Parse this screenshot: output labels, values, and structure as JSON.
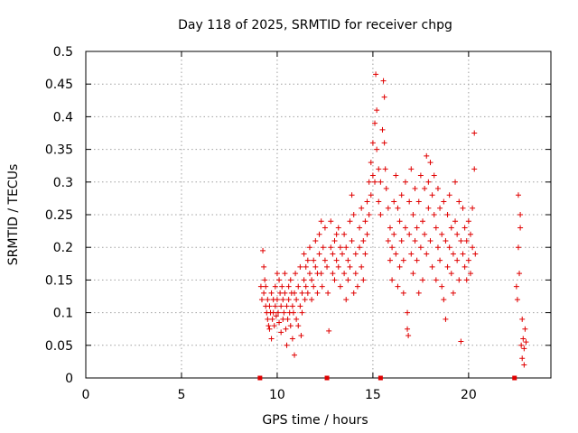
{
  "chart_data": {
    "type": "scatter",
    "title": "Day 118 of 2025, SRMTID for receiver chpg",
    "xlabel": "GPS time / hours",
    "ylabel": "SRMTID / TECUs",
    "xlim": [
      0,
      24.3
    ],
    "ylim": [
      0,
      0.5
    ],
    "x_ticks": [
      0,
      5,
      10,
      15,
      20
    ],
    "x_tick_labels": [
      "0",
      "5",
      "10",
      "15",
      "20"
    ],
    "y_ticks": [
      0,
      0.05,
      0.1,
      0.15,
      0.2,
      0.25,
      0.3,
      0.35,
      0.4,
      0.45,
      0.5
    ],
    "y_tick_labels": [
      "0",
      "0.05",
      "0.1",
      "0.15",
      "0.2",
      "0.25",
      "0.3",
      "0.35",
      "0.4",
      "0.45",
      "0.5"
    ],
    "grid": true,
    "marker": "+",
    "color": "#e00000",
    "series": [
      {
        "name": "SRMTID",
        "points": [
          [
            9.15,
            0.14
          ],
          [
            9.2,
            0.12
          ],
          [
            9.25,
            0.195
          ],
          [
            9.3,
            0.17
          ],
          [
            9.3,
            0.13
          ],
          [
            9.35,
            0.15
          ],
          [
            9.4,
            0.14
          ],
          [
            9.4,
            0.11
          ],
          [
            9.45,
            0.1
          ],
          [
            9.5,
            0.09
          ],
          [
            9.5,
            0.12
          ],
          [
            9.55,
            0.08
          ],
          [
            9.6,
            0.11
          ],
          [
            9.6,
            0.075
          ],
          [
            9.65,
            0.1
          ],
          [
            9.7,
            0.06
          ],
          [
            9.7,
            0.13
          ],
          [
            9.75,
            0.09
          ],
          [
            9.8,
            0.12
          ],
          [
            9.8,
            0.1
          ],
          [
            9.85,
            0.08
          ],
          [
            9.9,
            0.11
          ],
          [
            9.9,
            0.14
          ],
          [
            9.95,
            0.095
          ],
          [
            10.0,
            0.16
          ],
          [
            10.0,
            0.12
          ],
          [
            10.05,
            0.1
          ],
          [
            10.1,
            0.15
          ],
          [
            10.1,
            0.085
          ],
          [
            10.15,
            0.13
          ],
          [
            10.2,
            0.11
          ],
          [
            10.2,
            0.07
          ],
          [
            10.25,
            0.14
          ],
          [
            10.3,
            0.12
          ],
          [
            10.3,
            0.09
          ],
          [
            10.35,
            0.1
          ],
          [
            10.4,
            0.16
          ],
          [
            10.4,
            0.13
          ],
          [
            10.45,
            0.075
          ],
          [
            10.5,
            0.11
          ],
          [
            10.5,
            0.05
          ],
          [
            10.55,
            0.09
          ],
          [
            10.6,
            0.14
          ],
          [
            10.6,
            0.12
          ],
          [
            10.65,
            0.1
          ],
          [
            10.7,
            0.08
          ],
          [
            10.7,
            0.15
          ],
          [
            10.75,
            0.13
          ],
          [
            10.8,
            0.06
          ],
          [
            10.8,
            0.11
          ],
          [
            10.85,
            0.1
          ],
          [
            10.9,
            0.035
          ],
          [
            10.9,
            0.13
          ],
          [
            10.95,
            0.16
          ],
          [
            11.0,
            0.12
          ],
          [
            11.0,
            0.09
          ],
          [
            11.1,
            0.14
          ],
          [
            11.1,
            0.08
          ],
          [
            11.2,
            0.11
          ],
          [
            11.2,
            0.17
          ],
          [
            11.25,
            0.065
          ],
          [
            11.3,
            0.13
          ],
          [
            11.3,
            0.1
          ],
          [
            11.4,
            0.15
          ],
          [
            11.4,
            0.19
          ],
          [
            11.45,
            0.12
          ],
          [
            11.5,
            0.14
          ],
          [
            11.5,
            0.17
          ],
          [
            11.6,
            0.18
          ],
          [
            11.6,
            0.13
          ],
          [
            11.7,
            0.16
          ],
          [
            11.7,
            0.2
          ],
          [
            11.8,
            0.15
          ],
          [
            11.8,
            0.12
          ],
          [
            11.9,
            0.14
          ],
          [
            11.9,
            0.18
          ],
          [
            12.0,
            0.21
          ],
          [
            12.0,
            0.17
          ],
          [
            12.1,
            0.16
          ],
          [
            12.1,
            0.13
          ],
          [
            12.2,
            0.22
          ],
          [
            12.2,
            0.19
          ],
          [
            12.3,
            0.24
          ],
          [
            12.3,
            0.16
          ],
          [
            12.35,
            0.14
          ],
          [
            12.4,
            0.2
          ],
          [
            12.5,
            0.23
          ],
          [
            12.5,
            0.18
          ],
          [
            12.6,
            0.17
          ],
          [
            12.65,
            0.13
          ],
          [
            12.7,
            0.072
          ],
          [
            12.8,
            0.24
          ],
          [
            12.8,
            0.2
          ],
          [
            12.9,
            0.19
          ],
          [
            12.9,
            0.16
          ],
          [
            13.0,
            0.21
          ],
          [
            13.0,
            0.15
          ],
          [
            13.1,
            0.22
          ],
          [
            13.1,
            0.18
          ],
          [
            13.2,
            0.17
          ],
          [
            13.2,
            0.23
          ],
          [
            13.3,
            0.2
          ],
          [
            13.3,
            0.14
          ],
          [
            13.4,
            0.19
          ],
          [
            13.5,
            0.22
          ],
          [
            13.5,
            0.16
          ],
          [
            13.6,
            0.12
          ],
          [
            13.6,
            0.2
          ],
          [
            13.7,
            0.18
          ],
          [
            13.7,
            0.15
          ],
          [
            13.8,
            0.24
          ],
          [
            13.8,
            0.17
          ],
          [
            13.9,
            0.28
          ],
          [
            13.9,
            0.21
          ],
          [
            14.0,
            0.25
          ],
          [
            14.0,
            0.13
          ],
          [
            14.1,
            0.19
          ],
          [
            14.1,
            0.16
          ],
          [
            14.2,
            0.14
          ],
          [
            14.3,
            0.2
          ],
          [
            14.3,
            0.23
          ],
          [
            14.4,
            0.26
          ],
          [
            14.4,
            0.17
          ],
          [
            14.5,
            0.21
          ],
          [
            14.5,
            0.15
          ],
          [
            14.6,
            0.24
          ],
          [
            14.6,
            0.19
          ],
          [
            14.7,
            0.27
          ],
          [
            14.7,
            0.22
          ],
          [
            14.8,
            0.3
          ],
          [
            14.8,
            0.25
          ],
          [
            14.9,
            0.33
          ],
          [
            14.9,
            0.28
          ],
          [
            15.0,
            0.36
          ],
          [
            15.0,
            0.31
          ],
          [
            15.1,
            0.39
          ],
          [
            15.1,
            0.3
          ],
          [
            15.15,
            0.465
          ],
          [
            15.2,
            0.41
          ],
          [
            15.2,
            0.35
          ],
          [
            15.3,
            0.32
          ],
          [
            15.3,
            0.27
          ],
          [
            15.4,
            0.25
          ],
          [
            15.4,
            0.3
          ],
          [
            15.5,
            0.38
          ],
          [
            15.55,
            0.455
          ],
          [
            15.6,
            0.43
          ],
          [
            15.6,
            0.36
          ],
          [
            15.65,
            0.32
          ],
          [
            15.7,
            0.29
          ],
          [
            15.8,
            0.26
          ],
          [
            15.8,
            0.21
          ],
          [
            15.9,
            0.18
          ],
          [
            15.9,
            0.23
          ],
          [
            16.0,
            0.2
          ],
          [
            16.0,
            0.15
          ],
          [
            16.1,
            0.27
          ],
          [
            16.1,
            0.22
          ],
          [
            16.2,
            0.31
          ],
          [
            16.2,
            0.19
          ],
          [
            16.3,
            0.26
          ],
          [
            16.3,
            0.14
          ],
          [
            16.4,
            0.24
          ],
          [
            16.4,
            0.17
          ],
          [
            16.5,
            0.21
          ],
          [
            16.5,
            0.28
          ],
          [
            16.6,
            0.18
          ],
          [
            16.6,
            0.13
          ],
          [
            16.7,
            0.23
          ],
          [
            16.7,
            0.3
          ],
          [
            16.8,
            0.1
          ],
          [
            16.8,
            0.075
          ],
          [
            16.85,
            0.065
          ],
          [
            16.9,
            0.22
          ],
          [
            16.9,
            0.27
          ],
          [
            17.0,
            0.19
          ],
          [
            17.0,
            0.32
          ],
          [
            17.1,
            0.25
          ],
          [
            17.1,
            0.16
          ],
          [
            17.2,
            0.21
          ],
          [
            17.2,
            0.29
          ],
          [
            17.3,
            0.23
          ],
          [
            17.3,
            0.18
          ],
          [
            17.4,
            0.13
          ],
          [
            17.4,
            0.27
          ],
          [
            17.5,
            0.2
          ],
          [
            17.5,
            0.31
          ],
          [
            17.6,
            0.24
          ],
          [
            17.6,
            0.15
          ],
          [
            17.7,
            0.29
          ],
          [
            17.7,
            0.22
          ],
          [
            17.8,
            0.34
          ],
          [
            17.8,
            0.19
          ],
          [
            17.9,
            0.26
          ],
          [
            17.9,
            0.3
          ],
          [
            18.0,
            0.33
          ],
          [
            18.0,
            0.21
          ],
          [
            18.1,
            0.28
          ],
          [
            18.1,
            0.17
          ],
          [
            18.2,
            0.25
          ],
          [
            18.2,
            0.31
          ],
          [
            18.3,
            0.23
          ],
          [
            18.3,
            0.15
          ],
          [
            18.4,
            0.29
          ],
          [
            18.4,
            0.2
          ],
          [
            18.5,
            0.26
          ],
          [
            18.5,
            0.18
          ],
          [
            18.6,
            0.22
          ],
          [
            18.6,
            0.14
          ],
          [
            18.7,
            0.27
          ],
          [
            18.7,
            0.12
          ],
          [
            18.8,
            0.21
          ],
          [
            18.8,
            0.09
          ],
          [
            18.9,
            0.25
          ],
          [
            18.9,
            0.17
          ],
          [
            19.0,
            0.28
          ],
          [
            19.0,
            0.2
          ],
          [
            19.1,
            0.16
          ],
          [
            19.1,
            0.23
          ],
          [
            19.2,
            0.19
          ],
          [
            19.2,
            0.13
          ],
          [
            19.3,
            0.24
          ],
          [
            19.3,
            0.3
          ],
          [
            19.4,
            0.18
          ],
          [
            19.4,
            0.22
          ],
          [
            19.5,
            0.15
          ],
          [
            19.5,
            0.27
          ],
          [
            19.6,
            0.21
          ],
          [
            19.6,
            0.056
          ],
          [
            19.7,
            0.26
          ],
          [
            19.7,
            0.19
          ],
          [
            19.8,
            0.23
          ],
          [
            19.8,
            0.17
          ],
          [
            19.9,
            0.21
          ],
          [
            19.9,
            0.15
          ],
          [
            20.0,
            0.24
          ],
          [
            20.0,
            0.18
          ],
          [
            20.1,
            0.22
          ],
          [
            20.1,
            0.16
          ],
          [
            20.2,
            0.2
          ],
          [
            20.2,
            0.26
          ],
          [
            20.3,
            0.375
          ],
          [
            20.3,
            0.32
          ],
          [
            20.35,
            0.19
          ],
          [
            22.5,
            0.14
          ],
          [
            22.55,
            0.12
          ],
          [
            22.6,
            0.28
          ],
          [
            22.6,
            0.2
          ],
          [
            22.65,
            0.16
          ],
          [
            22.7,
            0.25
          ],
          [
            22.7,
            0.23
          ],
          [
            22.75,
            0.05
          ],
          [
            22.8,
            0.03
          ],
          [
            22.8,
            0.09
          ],
          [
            22.85,
            0.06
          ],
          [
            22.9,
            0.045
          ],
          [
            22.9,
            0.02
          ],
          [
            22.95,
            0.075
          ],
          [
            23.0,
            0.055
          ]
        ]
      }
    ],
    "gap_markers_x": [
      9.1,
      12.6,
      15.4,
      22.4
    ]
  }
}
